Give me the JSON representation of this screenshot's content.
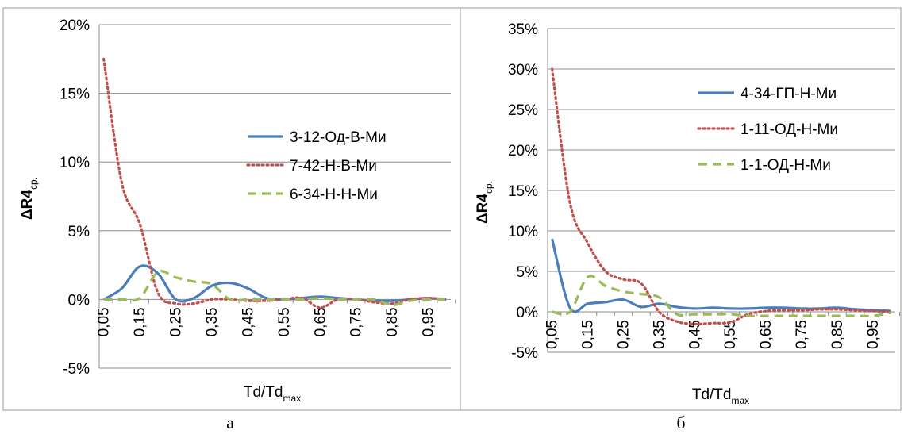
{
  "chart_data": [
    {
      "type": "line",
      "panel": "a",
      "caption": "а",
      "xlabel_main": "Td/Td",
      "xlabel_sub": "max",
      "ylabel_main": "ΔR4",
      "ylabel_sub": "ср.",
      "x": [
        0.05,
        0.1,
        0.15,
        0.2,
        0.25,
        0.3,
        0.35,
        0.4,
        0.45,
        0.5,
        0.55,
        0.6,
        0.65,
        0.7,
        0.75,
        0.8,
        0.85,
        0.9,
        0.95,
        1.0
      ],
      "x_ticks": [
        "0,05",
        "0,15",
        "0,25",
        "0,35",
        "0,45",
        "0,55",
        "0,65",
        "0,75",
        "0,85",
        "0,95"
      ],
      "y_ticks": [
        "-5%",
        "0%",
        "5%",
        "10%",
        "15%",
        "20%"
      ],
      "ylim": [
        -5,
        20
      ],
      "y_unit": "%",
      "grid": true,
      "legend_position": "right",
      "series": [
        {
          "name": "3-12-Од-В-Ми",
          "style": "solid",
          "color": "#4a7ebb",
          "values": [
            0,
            0.8,
            2.4,
            1.9,
            0.0,
            0.1,
            1.0,
            1.2,
            0.8,
            0.1,
            0.0,
            0.1,
            0.2,
            0.1,
            0.0,
            -0.1,
            -0.1,
            0.0,
            0.1,
            0.0
          ]
        },
        {
          "name": "7-42-Н-В-Ми",
          "style": "dotted",
          "color": "#c0504d",
          "values": [
            17.5,
            8.5,
            5.5,
            0.5,
            -0.3,
            -0.3,
            0.0,
            0.0,
            -0.1,
            -0.1,
            0.0,
            0.1,
            -0.6,
            0.0,
            0.0,
            -0.2,
            -0.3,
            0.0,
            0.1,
            0.0
          ]
        },
        {
          "name": "6-34-Н-Н-Ми",
          "style": "dashed",
          "color": "#9bbb59",
          "values": [
            0,
            0.0,
            0.1,
            2.0,
            1.6,
            1.3,
            1.1,
            0.0,
            0.0,
            0.0,
            0.0,
            0.0,
            0.1,
            0.0,
            0.0,
            0.0,
            -0.4,
            -0.1,
            0.0,
            0.0
          ]
        }
      ]
    },
    {
      "type": "line",
      "panel": "б",
      "caption": "б",
      "xlabel_main": "Td/Td",
      "xlabel_sub": "max",
      "ylabel_main": "ΔR4",
      "ylabel_sub": "ср.",
      "x": [
        0.05,
        0.1,
        0.15,
        0.2,
        0.25,
        0.3,
        0.35,
        0.4,
        0.45,
        0.5,
        0.55,
        0.6,
        0.65,
        0.7,
        0.75,
        0.8,
        0.85,
        0.9,
        0.95,
        1.0
      ],
      "x_ticks": [
        "0,05",
        "0,15",
        "0,25",
        "0,35",
        "0,45",
        "0,55",
        "0,65",
        "0,75",
        "0,85",
        "0,95"
      ],
      "y_ticks": [
        "-5%",
        "0%",
        "5%",
        "10%",
        "15%",
        "20%",
        "25%",
        "30%",
        "35%"
      ],
      "ylim": [
        -5,
        35
      ],
      "y_unit": "%",
      "grid": true,
      "legend_position": "top-right",
      "series": [
        {
          "name": "4-34-ГП-Н-Ми",
          "style": "solid",
          "color": "#4a7ebb",
          "values": [
            9.0,
            0.5,
            1.0,
            1.2,
            1.5,
            0.6,
            1.0,
            0.6,
            0.4,
            0.5,
            0.4,
            0.4,
            0.5,
            0.5,
            0.4,
            0.4,
            0.5,
            0.3,
            0.2,
            0.1
          ]
        },
        {
          "name": "1-11-ОД-Н-Ми",
          "style": "dotted",
          "color": "#c0504d",
          "values": [
            30.0,
            13.5,
            8.5,
            5.0,
            4.0,
            3.5,
            0.0,
            -1.2,
            -1.5,
            -1.4,
            -1.3,
            -0.3,
            0.1,
            0.2,
            0.2,
            0.3,
            0.3,
            0.2,
            0.1,
            0.0
          ]
        },
        {
          "name": "1-1-ОД-Н-Ми",
          "style": "dashed",
          "color": "#9bbb59",
          "values": [
            0,
            0.0,
            4.3,
            3.2,
            2.5,
            2.2,
            1.8,
            -0.3,
            -0.3,
            -0.3,
            -0.3,
            -0.5,
            -0.5,
            -0.5,
            -0.5,
            -0.5,
            -0.5,
            -0.5,
            -0.5,
            -0.1
          ]
        }
      ]
    }
  ]
}
